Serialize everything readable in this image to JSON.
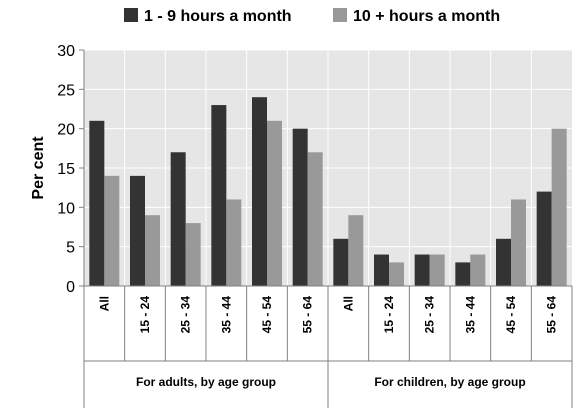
{
  "chart_data": {
    "type": "bar",
    "title": "",
    "xlabel": "",
    "ylabel": "Per cent",
    "ylim": [
      0,
      30
    ],
    "yticks": [
      0,
      5,
      10,
      15,
      20,
      25,
      30
    ],
    "grid": true,
    "legend_position": "top",
    "categories": [
      "All",
      "15 - 24",
      "25 - 34",
      "35 - 44",
      "45 - 54",
      "55 - 64",
      "All",
      "15 - 24",
      "25 - 34",
      "35 - 44",
      "45 - 54",
      "55 - 64"
    ],
    "groups": [
      {
        "label": "For adults, by age group",
        "count": 6
      },
      {
        "label": "For children, by age group",
        "count": 6
      }
    ],
    "series": [
      {
        "name": "1 - 9 hours a month",
        "color": "#333333",
        "values": [
          21,
          14,
          17,
          23,
          24,
          20,
          6,
          4,
          4,
          3,
          6,
          12
        ]
      },
      {
        "name": "10 + hours a month",
        "color": "#999999",
        "values": [
          14,
          9,
          8,
          11,
          21,
          17,
          9,
          3,
          4,
          4,
          11,
          20
        ]
      }
    ]
  }
}
